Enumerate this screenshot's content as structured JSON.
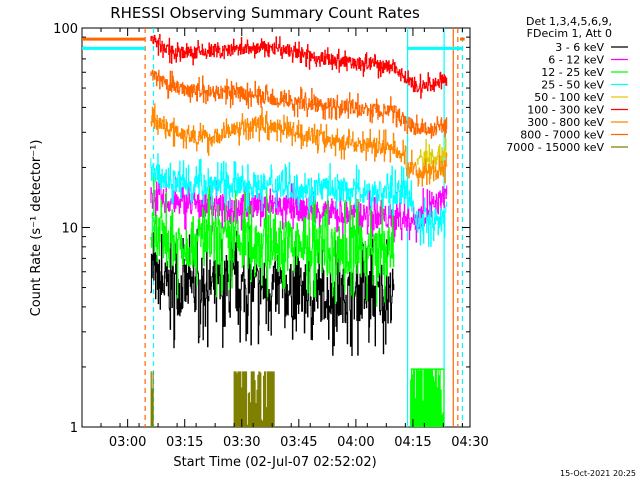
{
  "chart_data": {
    "type": "line",
    "title": "RHESSI Observing Summary Count Rates",
    "xlabel": "Start Time (02-Jul-07 02:52:02)",
    "ylabel": "Count Rate (s⁻¹ detector⁻¹)",
    "yscale": "log",
    "ylim": [
      1,
      100
    ],
    "xlim_minutes": [
      -4,
      98
    ],
    "x_ticks": [
      {
        "m": 8,
        "label": "03:00"
      },
      {
        "m": 23,
        "label": "03:15"
      },
      {
        "m": 38,
        "label": "03:30"
      },
      {
        "m": 53,
        "label": "03:45"
      },
      {
        "m": 68,
        "label": "04:00"
      },
      {
        "m": 83,
        "label": "04:15"
      },
      {
        "m": 98,
        "label": "04:30"
      }
    ],
    "y_ticks": [
      {
        "v": 1,
        "label": "1"
      },
      {
        "v": 10,
        "label": "10"
      },
      {
        "v": 100,
        "label": "100"
      }
    ],
    "legend_header": [
      "Det 1,3,4,5,6,9,",
      "FDecim 1, Att 0"
    ],
    "series": [
      {
        "name": "3 - 6 keV",
        "color": "#000000",
        "points": [
          [
            14,
            6.5
          ],
          [
            16,
            5.2
          ],
          [
            20,
            5.0
          ],
          [
            26,
            5.1
          ],
          [
            32,
            5.1
          ],
          [
            38,
            5.0
          ],
          [
            44,
            5.0
          ],
          [
            50,
            4.8
          ],
          [
            56,
            4.7
          ],
          [
            62,
            4.6
          ],
          [
            70,
            4.6
          ],
          [
            78,
            4.6
          ]
        ]
      },
      {
        "name": "6 - 12 keV",
        "color": "#ff00ff",
        "points": [
          [
            14,
            14
          ],
          [
            18,
            13.5
          ],
          [
            26,
            13
          ],
          [
            32,
            12.8
          ],
          [
            38,
            12.9
          ],
          [
            44,
            13
          ],
          [
            50,
            12.6
          ],
          [
            56,
            12.2
          ],
          [
            62,
            11.8
          ],
          [
            70,
            11.5
          ],
          [
            78,
            11.2
          ],
          [
            82,
            11
          ],
          [
            84,
            11
          ],
          [
            88,
            12.5
          ],
          [
            90,
            13.5
          ],
          [
            92,
            15
          ]
        ]
      },
      {
        "name": "12 - 25 keV",
        "color": "#00ff00",
        "points": [
          [
            14,
            9.5
          ],
          [
            18,
            8.5
          ],
          [
            26,
            8.4
          ],
          [
            32,
            8.4
          ],
          [
            38,
            8.3
          ],
          [
            44,
            8.4
          ],
          [
            50,
            8.2
          ],
          [
            56,
            8.0
          ],
          [
            62,
            7.8
          ],
          [
            70,
            7.6
          ],
          [
            78,
            7.5
          ]
        ]
      },
      {
        "name": "25 - 50 keV",
        "color": "#00ffff",
        "points": [
          [
            14,
            20
          ],
          [
            16,
            18
          ],
          [
            20,
            17
          ],
          [
            26,
            16.5
          ],
          [
            32,
            16.5
          ],
          [
            38,
            16.2
          ],
          [
            44,
            16.2
          ],
          [
            50,
            16.0
          ],
          [
            56,
            15.8
          ],
          [
            62,
            15.6
          ],
          [
            70,
            15.2
          ],
          [
            78,
            15.0
          ],
          [
            82,
            15
          ],
          [
            84,
            10.5
          ],
          [
            90,
            11
          ],
          [
            92,
            12
          ]
        ]
      },
      {
        "name": "50 - 100 keV",
        "color": "#ddcc00",
        "points": [
          [
            84,
            22
          ],
          [
            88,
            22.5
          ],
          [
            92,
            24
          ]
        ]
      },
      {
        "name": "100 - 300 keV",
        "color": "#ff0000",
        "points": [
          [
            14,
            90
          ],
          [
            18,
            78
          ],
          [
            24,
            75
          ],
          [
            30,
            76
          ],
          [
            38,
            78
          ],
          [
            44,
            80
          ],
          [
            50,
            77
          ],
          [
            56,
            72
          ],
          [
            62,
            69
          ],
          [
            70,
            66
          ],
          [
            78,
            64
          ],
          [
            84,
            50
          ],
          [
            88,
            52
          ],
          [
            92,
            55
          ]
        ]
      },
      {
        "name": "300 - 800 keV",
        "color": "#ff8800",
        "points": [
          [
            14,
            35
          ],
          [
            18,
            32
          ],
          [
            24,
            29
          ],
          [
            30,
            28
          ],
          [
            36,
            31
          ],
          [
            42,
            33
          ],
          [
            48,
            32
          ],
          [
            56,
            29
          ],
          [
            62,
            27
          ],
          [
            70,
            26
          ],
          [
            78,
            25
          ],
          [
            84,
            19
          ],
          [
            88,
            19
          ],
          [
            92,
            20
          ]
        ]
      },
      {
        "name": "800 - 7000 keV",
        "color": "#ff6600",
        "points": [
          [
            14,
            58
          ],
          [
            18,
            52
          ],
          [
            24,
            49
          ],
          [
            30,
            48
          ],
          [
            38,
            47
          ],
          [
            44,
            45
          ],
          [
            50,
            43
          ],
          [
            56,
            42
          ],
          [
            62,
            41
          ],
          [
            70,
            39
          ],
          [
            78,
            38
          ],
          [
            84,
            31
          ],
          [
            88,
            31
          ],
          [
            92,
            33
          ]
        ]
      },
      {
        "name": "7000 - 15000 keV",
        "color": "#808000",
        "points": [
          [
            14,
            1.9
          ],
          [
            14.5,
            1.9
          ],
          [
            36,
            1.9
          ],
          [
            46,
            1.9
          ]
        ]
      }
    ],
    "annotations": [
      "15-Oct-2021 20:25"
    ]
  },
  "colors": {
    "axis": "#000000",
    "dashed_cyan": "#00ffff",
    "dashed_orange": "#ff6600",
    "green_burst": "#00ff00",
    "olive_burst": "#808000"
  }
}
